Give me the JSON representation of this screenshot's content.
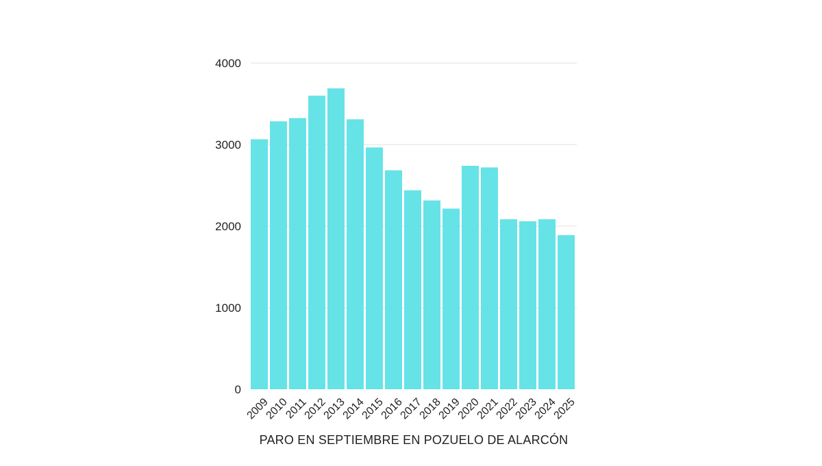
{
  "chart_data": {
    "type": "bar",
    "title": "",
    "xlabel": "PARO EN SEPTIEMBRE EN POZUELO DE ALARCÓN",
    "ylabel": "",
    "categories": [
      "2009",
      "2010",
      "2011",
      "2012",
      "2013",
      "2014",
      "2015",
      "2016",
      "2017",
      "2018",
      "2019",
      "2020",
      "2021",
      "2022",
      "2023",
      "2024",
      "2025"
    ],
    "series": [
      {
        "values": [
          3065,
          3285,
          3325,
          3600,
          3690,
          3310,
          2965,
          2685,
          2440,
          2315,
          2215,
          2740,
          2720,
          2085,
          2060,
          2085,
          1890
        ]
      }
    ],
    "ylim": [
      0,
      4000
    ],
    "yticks": [
      0,
      1000,
      2000,
      3000,
      4000
    ],
    "grid": true,
    "legend": "none",
    "colors": {
      "bar": "#66e3e6",
      "grid": "#e2e2e2",
      "text": "#222222"
    }
  }
}
